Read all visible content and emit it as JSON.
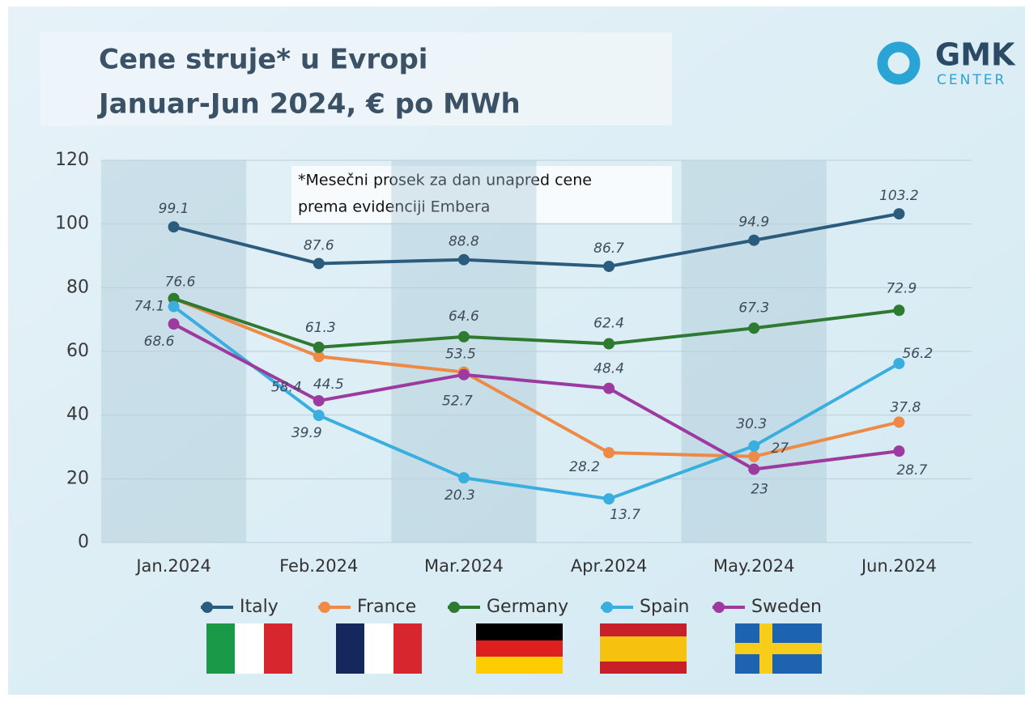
{
  "logo": {
    "name": "GMK",
    "sub": "CENTER"
  },
  "chart_data": {
    "type": "line",
    "title": "Cene struje* u Evropi",
    "subtitle": "Januar-Jun 2024, € po MWh",
    "annotation": [
      "*Mesečni prosek za dan unapred cene",
      "prema evidenciji Embera"
    ],
    "categories": [
      "Jan.2024",
      "Feb.2024",
      "Mar.2024",
      "Apr.2024",
      "May.2024",
      "Jun.2024"
    ],
    "ylim": [
      0,
      120
    ],
    "yticks": [
      0,
      20,
      40,
      60,
      80,
      100,
      120
    ],
    "grid": true,
    "series": [
      {
        "name": "Italy",
        "color": "#2b5c7e",
        "values": [
          99.1,
          87.6,
          88.8,
          86.7,
          94.9,
          103.2
        ]
      },
      {
        "name": "France",
        "color": "#ec8a46",
        "values": [
          76.6,
          58.4,
          53.5,
          28.2,
          27,
          37.8
        ]
      },
      {
        "name": "Germany",
        "color": "#2e7a30",
        "values": [
          76.6,
          61.3,
          64.6,
          62.4,
          67.3,
          72.9
        ],
        "value_labels": [
          null,
          "61.3",
          "64.6",
          "62.4",
          "67.3",
          "72.9"
        ]
      },
      {
        "name": "Spain",
        "color": "#3aafdf",
        "values": [
          74.1,
          39.9,
          20.3,
          13.7,
          30.3,
          56.2
        ]
      },
      {
        "name": "Sweden",
        "color": "#9c3a9f",
        "values": [
          68.6,
          44.5,
          52.7,
          48.4,
          23,
          28.7
        ]
      }
    ]
  }
}
